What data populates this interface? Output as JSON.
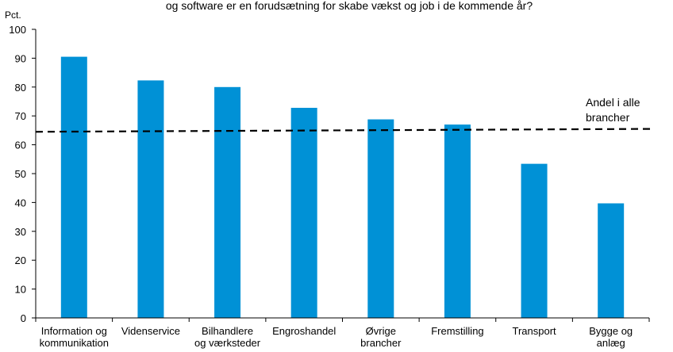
{
  "chart_data": {
    "type": "bar",
    "title": "og software er en forudsætning for skabe vækst og job i de kommende år?",
    "ylabel": "Pct.",
    "xlabel": "",
    "ylim": [
      0,
      100
    ],
    "yticks": [
      0,
      10,
      20,
      30,
      40,
      50,
      60,
      70,
      80,
      90,
      100
    ],
    "grid": false,
    "bar_color": "#0091d6",
    "categories": [
      [
        "Information og",
        "kommunikation"
      ],
      [
        "Videnservice"
      ],
      [
        "Bilhandlere",
        "og værksteder"
      ],
      [
        "Engroshandel"
      ],
      [
        "Øvrige",
        "brancher"
      ],
      [
        "Fremstilling"
      ],
      [
        "Transport"
      ],
      [
        "Bygge og",
        "anlæg"
      ]
    ],
    "values": [
      90.5,
      82.3,
      80.0,
      72.8,
      68.8,
      67.0,
      53.4,
      39.7
    ],
    "reference_line": {
      "label": [
        "Andel i alle",
        "brancher"
      ],
      "y_start": 64.5,
      "y_end": 65.5,
      "style": "dashed",
      "color": "#000000"
    }
  }
}
